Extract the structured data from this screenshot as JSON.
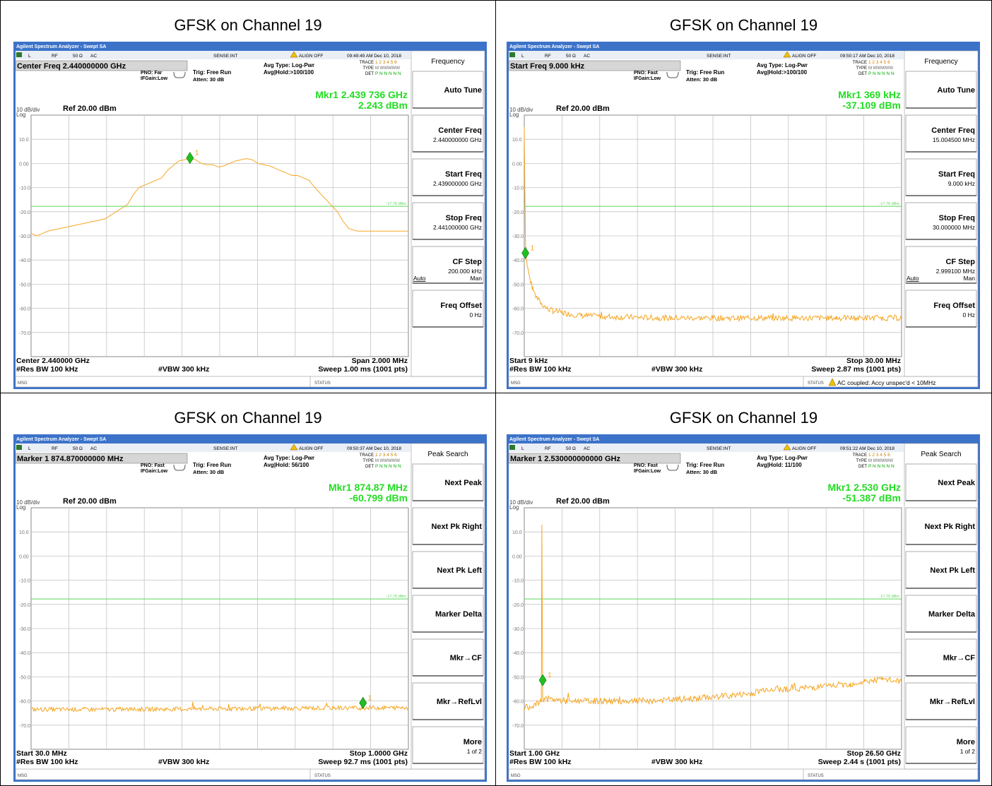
{
  "panels": [
    {
      "caption": "GFSK on Channel 19",
      "titlebar": "Agilent Spectrum Analyzer - Swept SA",
      "status": {
        "l": "L",
        "rf": "RF",
        "imp": "50 Ω",
        "coupling": "AC",
        "sense": "SENSE:INT",
        "align": "ALIGN OFF",
        "time": "09:49:49 AM Dec 10, 2018"
      },
      "active_param": "Center Freq  2.440000000 GHz",
      "pno": "PNO: Far",
      "ifgain": "IFGain:Low",
      "trig": "Trig: Free Run",
      "atten": "Atten: 30 dB",
      "avg_type": "Avg Type: Log-Pwr",
      "avg_hold": "Avg|Hold:>100/100",
      "trace_label": "TRACE",
      "trace_nums": "1 2 3 4 5 6",
      "type_label": "TYPE",
      "type_val": "M WWWWW",
      "det_label": "DET",
      "det_val": "P N N N N N",
      "mkr_line1": "Mkr1 2.439 736 GHz",
      "mkr_line2": "2.243 dBm",
      "scale": "10 dB/div",
      "log": "Log",
      "ref": "Ref 20.00 dBm",
      "y_ticks": [
        "10.0",
        "0.00",
        "-10.0",
        "-20.0",
        "-30.0",
        "-40.0",
        "-50.0",
        "-60.0",
        "-70.0"
      ],
      "limit_label": "-17.76 dBm",
      "marker_num": "1",
      "bottom_left1": "Center 2.440000 GHz",
      "bottom_left2": "#Res BW 100 kHz",
      "bottom_mid": "#VBW 300 kHz",
      "bottom_right1": "Span 2.000 MHz",
      "bottom_right2": "Sweep  1.00 ms (1001 pts)",
      "msg": "MSG",
      "status_word": "STATUS",
      "warning": "",
      "menu_title": "Frequency",
      "softkeys": [
        {
          "label": "Auto Tune",
          "value": "",
          "extra_left": "",
          "extra_right": ""
        },
        {
          "label": "Center Freq",
          "value": "2.440000000 GHz",
          "extra_left": "",
          "extra_right": ""
        },
        {
          "label": "Start Freq",
          "value": "2.439000000 GHz",
          "extra_left": "",
          "extra_right": ""
        },
        {
          "label": "Stop Freq",
          "value": "2.441000000 GHz",
          "extra_left": "",
          "extra_right": ""
        },
        {
          "label": "CF Step",
          "value": "200.000 kHz",
          "extra_left": "Auto",
          "extra_right": "Man"
        },
        {
          "label": "Freq Offset",
          "value": "0 Hz",
          "extra_left": "",
          "extra_right": ""
        }
      ],
      "trace_points": [
        [
          0,
          -29
        ],
        [
          2,
          -30
        ],
        [
          6,
          -28
        ],
        [
          10,
          -27
        ],
        [
          14,
          -26
        ],
        [
          18,
          -25
        ],
        [
          22,
          -24
        ],
        [
          26,
          -23
        ],
        [
          30,
          -20
        ],
        [
          34,
          -17
        ],
        [
          36,
          -13
        ],
        [
          38,
          -10
        ],
        [
          42,
          -8
        ],
        [
          46,
          -6
        ],
        [
          48,
          -3
        ],
        [
          50,
          -1
        ],
        [
          52,
          1
        ],
        [
          54,
          1.5
        ],
        [
          56,
          2.2
        ],
        [
          58,
          1.5
        ],
        [
          60,
          0
        ],
        [
          62,
          -0.5
        ],
        [
          64,
          -0.5
        ],
        [
          66,
          -1.5
        ],
        [
          68,
          -1
        ],
        [
          70,
          0
        ],
        [
          72,
          1
        ],
        [
          74,
          1.5
        ],
        [
          76,
          2
        ],
        [
          78,
          1.5
        ],
        [
          80,
          0
        ],
        [
          82,
          -0.5
        ],
        [
          84,
          -1
        ],
        [
          86,
          -2
        ],
        [
          88,
          -3
        ],
        [
          90,
          -4
        ],
        [
          92,
          -5
        ],
        [
          94,
          -5
        ],
        [
          96,
          -6
        ],
        [
          98,
          -7
        ],
        [
          100,
          -10
        ],
        [
          104,
          -15
        ],
        [
          108,
          -20
        ],
        [
          110,
          -24
        ],
        [
          112,
          -27
        ],
        [
          115,
          -28
        ],
        [
          120,
          -28
        ],
        [
          125,
          -28
        ],
        [
          130,
          -28
        ],
        [
          133,
          -28
        ]
      ],
      "marker": [
        56,
        2.243
      ],
      "noise": null
    },
    {
      "caption": "GFSK on Channel 19",
      "titlebar": "Agilent Spectrum Analyzer - Swept SA",
      "status": {
        "l": "L",
        "rf": "RF",
        "imp": "50 Ω",
        "coupling": "AC",
        "sense": "SENSE:INT",
        "align": "ALIGN OFF",
        "time": "09:50:17 AM Dec 10, 2018"
      },
      "active_param": "Start Freq  9.000 kHz",
      "pno": "PNO: Fast",
      "ifgain": "IFGain:Low",
      "trig": "Trig: Free Run",
      "atten": "Atten: 30 dB",
      "avg_type": "Avg Type: Log-Pwr",
      "avg_hold": "Avg|Hold:>100/100",
      "trace_label": "TRACE",
      "trace_nums": "1 2 3 4 5 6",
      "type_label": "TYPE",
      "type_val": "M WWWWW",
      "det_label": "DET",
      "det_val": "P N N N N N",
      "mkr_line1": "Mkr1 369 kHz",
      "mkr_line2": "-37.109 dBm",
      "scale": "10 dB/div",
      "log": "Log",
      "ref": "Ref 20.00 dBm",
      "y_ticks": [
        "10.0",
        "0.00",
        "-10.0",
        "-20.0",
        "-30.0",
        "-40.0",
        "-50.0",
        "-60.0",
        "-70.0"
      ],
      "limit_label": "-17.76 dBm",
      "marker_num": "1",
      "bottom_left1": "Start 9 kHz",
      "bottom_left2": "#Res BW 100 kHz",
      "bottom_mid": "#VBW 300 kHz",
      "bottom_right1": "Stop 30.00 MHz",
      "bottom_right2": "Sweep  2.87 ms (1001 pts)",
      "msg": "MSG",
      "status_word": "STATUS",
      "warning": "AC coupled: Accy unspec'd < 10MHz",
      "menu_title": "Frequency",
      "softkeys": [
        {
          "label": "Auto Tune",
          "value": "",
          "extra_left": "",
          "extra_right": ""
        },
        {
          "label": "Center Freq",
          "value": "15.004500 MHz",
          "extra_left": "",
          "extra_right": ""
        },
        {
          "label": "Start Freq",
          "value": "9.000 kHz",
          "extra_left": "",
          "extra_right": ""
        },
        {
          "label": "Stop Freq",
          "value": "30.000000 MHz",
          "extra_left": "",
          "extra_right": ""
        },
        {
          "label": "CF Step",
          "value": "2.999100 MHz",
          "extra_left": "Auto",
          "extra_right": "Man"
        },
        {
          "label": "Freq Offset",
          "value": "0 Hz",
          "extra_left": "",
          "extra_right": ""
        }
      ],
      "trace_points": [
        [
          0,
          15
        ],
        [
          0.2,
          -10
        ],
        [
          0.4,
          -30
        ],
        [
          0.6,
          -37
        ],
        [
          1,
          -42
        ],
        [
          2,
          -48
        ],
        [
          3,
          -52
        ],
        [
          4,
          -55
        ],
        [
          6,
          -58
        ],
        [
          8,
          -60
        ],
        [
          10,
          -61
        ],
        [
          14,
          -62
        ],
        [
          20,
          -63
        ],
        [
          30,
          -63.5
        ],
        [
          50,
          -64
        ],
        [
          80,
          -64
        ],
        [
          110,
          -64
        ],
        [
          133,
          -64
        ]
      ],
      "marker": [
        0.4,
        -37.109
      ],
      "noise": 1.2
    },
    {
      "caption": "GFSK on Channel 19",
      "titlebar": "Agilent Spectrum Analyzer - Swept SA",
      "status": {
        "l": "L",
        "rf": "RF",
        "imp": "50 Ω",
        "coupling": "AC",
        "sense": "SENSE:INT",
        "align": "ALIGN OFF",
        "time": "09:50:37 AM Dec 10, 2018"
      },
      "active_param": "Marker 1  874.870000000 MHz",
      "pno": "PNO: Fast",
      "ifgain": "IFGain:Low",
      "trig": "Trig: Free Run",
      "atten": "Atten: 30 dB",
      "avg_type": "Avg Type: Log-Pwr",
      "avg_hold": "Avg|Hold: 56/100",
      "trace_label": "TRACE",
      "trace_nums": "1 2 3 4 5 6",
      "type_label": "TYPE",
      "type_val": "M WWWWW",
      "det_label": "DET",
      "det_val": "P N N N N N",
      "mkr_line1": "Mkr1 874.87 MHz",
      "mkr_line2": "-60.799 dBm",
      "scale": "10 dB/div",
      "log": "Log",
      "ref": "Ref 20.00 dBm",
      "y_ticks": [
        "10.0",
        "0.00",
        "-10.0",
        "-20.0",
        "-30.0",
        "-40.0",
        "-50.0",
        "-60.0",
        "-70.0"
      ],
      "limit_label": "-17.76 dBm",
      "marker_num": "1",
      "bottom_left1": "Start 30.0 MHz",
      "bottom_left2": "#Res BW 100 kHz",
      "bottom_mid": "#VBW 300 kHz",
      "bottom_right1": "Stop 1.0000 GHz",
      "bottom_right2": "Sweep  92.7 ms (1001 pts)",
      "msg": "MSG",
      "status_word": "STATUS",
      "warning": "",
      "menu_title": "Peak Search",
      "softkeys": [
        {
          "label": "Next Peak",
          "value": "",
          "extra_left": "",
          "extra_right": ""
        },
        {
          "label": "Next Pk Right",
          "value": "",
          "extra_left": "",
          "extra_right": ""
        },
        {
          "label": "Next Pk Left",
          "value": "",
          "extra_left": "",
          "extra_right": ""
        },
        {
          "label": "Marker Delta",
          "value": "",
          "extra_left": "",
          "extra_right": ""
        },
        {
          "label": "Mkr→CF",
          "value": "",
          "extra_left": "",
          "extra_right": ""
        },
        {
          "label": "Mkr→RefLvl",
          "value": "",
          "extra_left": "",
          "extra_right": ""
        },
        {
          "label": "More",
          "value": "1 of 2",
          "extra_left": "",
          "extra_right": ""
        }
      ],
      "trace_points": [
        [
          0,
          -63.5
        ],
        [
          30,
          -63.5
        ],
        [
          60,
          -63.3
        ],
        [
          90,
          -63
        ],
        [
          120,
          -62.8
        ],
        [
          133,
          -62.8
        ]
      ],
      "marker": [
        117,
        -60.799
      ],
      "noise": 0.9
    },
    {
      "caption": "GFSK on Channel 19",
      "titlebar": "Agilent Spectrum Analyzer - Swept SA",
      "status": {
        "l": "L",
        "rf": "RF",
        "imp": "50 Ω",
        "coupling": "AC",
        "sense": "SENSE:INT",
        "align": "ALIGN OFF",
        "time": "09:51:22 AM Dec 10, 2018"
      },
      "active_param": "Marker 1  2.530000000000 GHz",
      "pno": "PNO: Fast",
      "ifgain": "IFGain:Low",
      "trig": "Trig: Free Run",
      "atten": "Atten: 30 dB",
      "avg_type": "Avg Type: Log-Pwr",
      "avg_hold": "Avg|Hold: 11/100",
      "trace_label": "TRACE",
      "trace_nums": "1 2 3 4 5 6",
      "type_label": "TYPE",
      "type_val": "M WWWWW",
      "det_label": "DET",
      "det_val": "P N N N N N",
      "mkr_line1": "Mkr1 2.530 GHz",
      "mkr_line2": "-51.387 dBm",
      "scale": "10 dB/div",
      "log": "Log",
      "ref": "Ref 20.00 dBm",
      "y_ticks": [
        "10.0",
        "0.00",
        "-10.0",
        "-20.0",
        "-30.0",
        "-40.0",
        "-50.0",
        "-60.0",
        "-70.0"
      ],
      "limit_label": "-17.76 dBm",
      "marker_num": "1",
      "bottom_left1": "Start 1.00 GHz",
      "bottom_left2": "#Res BW 100 kHz",
      "bottom_mid": "#VBW 300 kHz",
      "bottom_right1": "Stop 26.50 GHz",
      "bottom_right2": "Sweep  2.44 s (1001 pts)",
      "msg": "MSG",
      "status_word": "STATUS",
      "warning": "",
      "menu_title": "Peak Search",
      "softkeys": [
        {
          "label": "Next Peak",
          "value": "",
          "extra_left": "",
          "extra_right": ""
        },
        {
          "label": "Next Pk Right",
          "value": "",
          "extra_left": "",
          "extra_right": ""
        },
        {
          "label": "Next Pk Left",
          "value": "",
          "extra_left": "",
          "extra_right": ""
        },
        {
          "label": "Marker Delta",
          "value": "",
          "extra_left": "",
          "extra_right": ""
        },
        {
          "label": "Mkr→CF",
          "value": "",
          "extra_left": "",
          "extra_right": ""
        },
        {
          "label": "Mkr→RefLvl",
          "value": "",
          "extra_left": "",
          "extra_right": ""
        },
        {
          "label": "More",
          "value": "1 of 2",
          "extra_left": "",
          "extra_right": ""
        }
      ],
      "trace_points": [
        [
          0,
          -63
        ],
        [
          5,
          -61
        ],
        [
          6,
          -60
        ],
        [
          6.2,
          13
        ],
        [
          6.5,
          -60
        ],
        [
          7,
          -59
        ],
        [
          15,
          -60
        ],
        [
          30,
          -60
        ],
        [
          45,
          -60
        ],
        [
          60,
          -59
        ],
        [
          70,
          -58
        ],
        [
          80,
          -57
        ],
        [
          85,
          -55
        ],
        [
          95,
          -55
        ],
        [
          105,
          -54
        ],
        [
          115,
          -53
        ],
        [
          120,
          -52
        ],
        [
          126,
          -51
        ],
        [
          133,
          -52
        ]
      ],
      "marker": [
        6.5,
        -51.387
      ],
      "noise": 1.3
    }
  ]
}
